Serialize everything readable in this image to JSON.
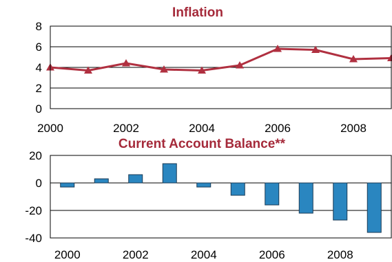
{
  "chart_data": [
    {
      "type": "line",
      "title": "Inflation",
      "xlabel": "",
      "ylabel": "",
      "x": [
        2000,
        2001,
        2002,
        2003,
        2004,
        2005,
        2006,
        2007,
        2008,
        2009
      ],
      "series": [
        {
          "values": [
            4.0,
            3.7,
            4.4,
            3.8,
            3.7,
            4.2,
            5.8,
            5.7,
            4.8,
            4.9
          ]
        }
      ],
      "xlim": [
        2000,
        2009
      ],
      "ylim": [
        0,
        8
      ],
      "yticks": [
        0,
        2,
        4,
        6,
        8
      ],
      "xticks": [
        2000,
        2002,
        2004,
        2006,
        2008
      ],
      "grid": true,
      "color": "#b03040"
    },
    {
      "type": "bar",
      "title": "Current Account Balance**",
      "xlabel": "",
      "ylabel": "",
      "categories": [
        2000,
        2001,
        2002,
        2003,
        2004,
        2005,
        2006,
        2007,
        2008,
        2009
      ],
      "values": [
        -3,
        3,
        6,
        14,
        -3,
        -9,
        -16,
        -22,
        -27,
        -36
      ],
      "ylim": [
        -40,
        20
      ],
      "yticks": [
        -40,
        -20,
        0,
        20
      ],
      "xticks": [
        2000,
        2002,
        2004,
        2006,
        2008
      ],
      "grid": true,
      "color": "#2a86c0"
    }
  ]
}
